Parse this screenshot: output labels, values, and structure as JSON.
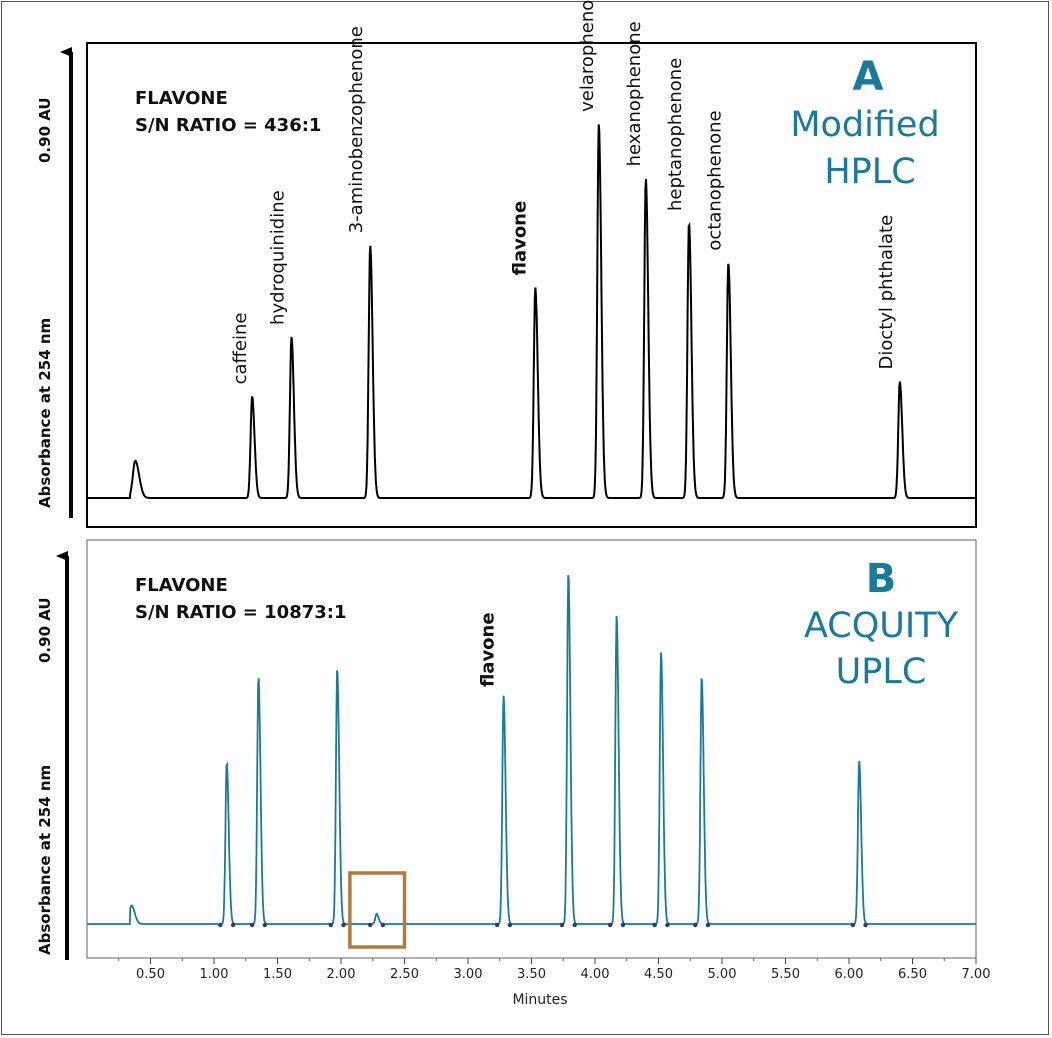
{
  "chart_data": [
    {
      "type": "line",
      "panel_letter": "A",
      "system_line1": "Modified",
      "system_line2": "HPLC",
      "annotation_line1": "FLAVONE",
      "annotation_line2": "S/N RATIO = 436:1",
      "ylabel": "Absorbance at 254 nm",
      "y_scale_label": "0.90 AU",
      "xlim": [
        0,
        7.0
      ],
      "ylim": [
        0,
        0.9
      ],
      "line_color": "#000000",
      "peaks": [
        {
          "name": "",
          "rt": 0.38,
          "height": 0.075
        },
        {
          "name": "caffeine",
          "rt": 1.3,
          "height": 0.205
        },
        {
          "name": "hydroquinidine",
          "rt": 1.61,
          "height": 0.325
        },
        {
          "name": "3-aminobenzophenone",
          "rt": 2.23,
          "height": 0.51
        },
        {
          "name": "flavone",
          "rt": 3.53,
          "height": 0.425,
          "bold": true
        },
        {
          "name": "velarophenone",
          "rt": 4.03,
          "height": 0.755
        },
        {
          "name": "hexanophenone",
          "rt": 4.4,
          "height": 0.645
        },
        {
          "name": "heptanophenone",
          "rt": 4.74,
          "height": 0.555
        },
        {
          "name": "octanophenone",
          "rt": 5.05,
          "height": 0.475
        },
        {
          "name": "Dioctyl phthalate",
          "rt": 6.4,
          "height": 0.235
        }
      ]
    },
    {
      "type": "line",
      "panel_letter": "B",
      "system_line1": "ACQUITY",
      "system_line2": "UPLC",
      "annotation_line1": "FLAVONE",
      "annotation_line2": "S/N RATIO = 10873:1",
      "ylabel": "Absorbance at 254 nm",
      "y_scale_label": "0.90 AU",
      "xlabel": "Minutes",
      "xlim": [
        0,
        7.0
      ],
      "ylim": [
        0,
        0.9
      ],
      "x_ticks": [
        "0.50",
        "1.00",
        "1.50",
        "2.00",
        "2.50",
        "3.00",
        "3.50",
        "4.00",
        "4.50",
        "5.00",
        "5.50",
        "6.00",
        "6.50",
        "7.00"
      ],
      "line_color": "#1a7a99",
      "highlight_box": {
        "x_range": [
          2.07,
          2.5
        ],
        "color": "#b07a40"
      },
      "peaks": [
        {
          "name": "",
          "rt": 0.35,
          "height": 0.045
        },
        {
          "name": "",
          "rt": 1.1,
          "height": 0.395
        },
        {
          "name": "",
          "rt": 1.35,
          "height": 0.605
        },
        {
          "name": "",
          "rt": 1.97,
          "height": 0.625
        },
        {
          "name": "",
          "rt": 2.28,
          "height": 0.025
        },
        {
          "name": "flavone",
          "rt": 3.28,
          "height": 0.56,
          "bold": true
        },
        {
          "name": "",
          "rt": 3.79,
          "height": 0.86
        },
        {
          "name": "",
          "rt": 4.17,
          "height": 0.755
        },
        {
          "name": "",
          "rt": 4.52,
          "height": 0.665
        },
        {
          "name": "",
          "rt": 4.84,
          "height": 0.605
        },
        {
          "name": "",
          "rt": 6.08,
          "height": 0.4
        }
      ]
    }
  ]
}
